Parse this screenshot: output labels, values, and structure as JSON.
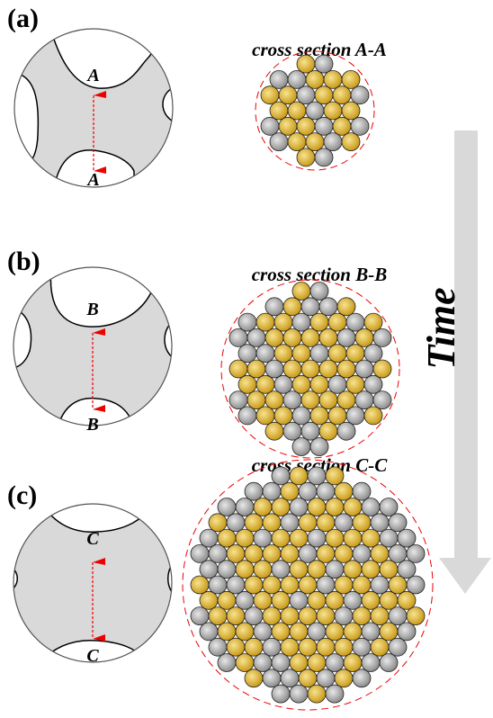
{
  "panels": [
    {
      "label": "(a)",
      "section_title": "cross section A-A",
      "markers": [
        "A",
        "A"
      ]
    },
    {
      "label": "(b)",
      "section_title": "cross section B-B",
      "markers": [
        "B",
        "B"
      ]
    },
    {
      "label": "(c)",
      "section_title": "cross section C-C",
      "markers": [
        "C",
        "C"
      ]
    }
  ],
  "arrow_label": "Time"
}
